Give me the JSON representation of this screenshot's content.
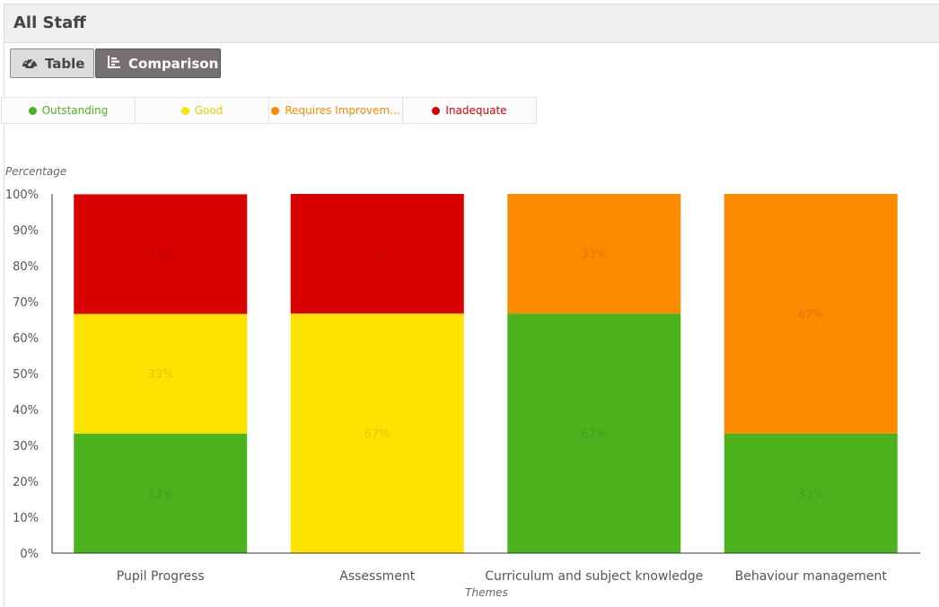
{
  "header": {
    "title": "All Staff"
  },
  "toolbar": {
    "table_label": "Table",
    "comparison_label": "Comparison"
  },
  "legend": [
    {
      "label": "Outstanding",
      "color": "#4ab31e"
    },
    {
      "label": "Good",
      "color": "#fde300"
    },
    {
      "label": "Requires Improvem...",
      "color": "#fe8a00"
    },
    {
      "label": "Inadequate",
      "color": "#d90000"
    }
  ],
  "chart_data": {
    "type": "bar",
    "stacked": true,
    "title": "",
    "xlabel": "Themes",
    "ylabel": "Percentage",
    "ylim": [
      0,
      100
    ],
    "yticks": [
      "0%",
      "10%",
      "20%",
      "30%",
      "40%",
      "50%",
      "60%",
      "70%",
      "80%",
      "90%",
      "100%"
    ],
    "grid": false,
    "legend_position": "top-left",
    "categories": [
      "Pupil Progress",
      "Assessment",
      "Curriculum and subject knowledge",
      "Behaviour management"
    ],
    "series": [
      {
        "name": "Outstanding",
        "color": "#4ab31e",
        "values": [
          33.3,
          0,
          66.7,
          33.3
        ],
        "labels": [
          "33%",
          "",
          "67%",
          "33%"
        ]
      },
      {
        "name": "Good",
        "color": "#fde300",
        "values": [
          33.3,
          66.7,
          0,
          0
        ],
        "labels": [
          "33%",
          "67%",
          "",
          ""
        ]
      },
      {
        "name": "Requires Improvement",
        "color": "#fe8a00",
        "values": [
          0,
          0,
          33.3,
          66.7
        ],
        "labels": [
          "",
          "",
          "33%",
          "67%"
        ]
      },
      {
        "name": "Inadequate",
        "color": "#d90000",
        "values": [
          33.3,
          33.3,
          0,
          0
        ],
        "labels": [
          "33%",
          "33%",
          "",
          ""
        ]
      }
    ]
  }
}
